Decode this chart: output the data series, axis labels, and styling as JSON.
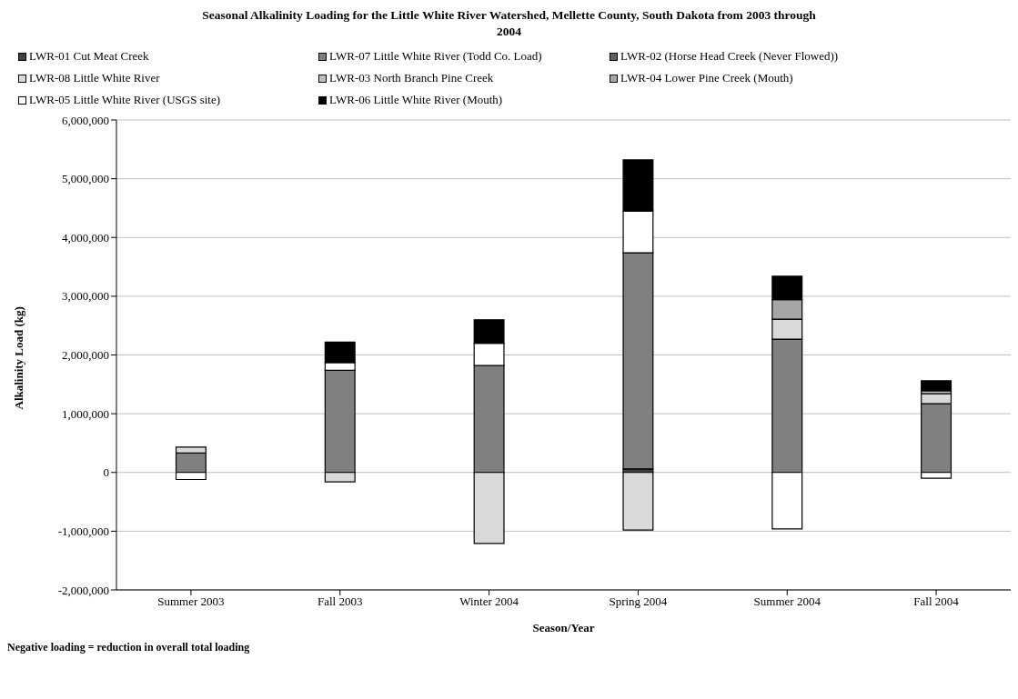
{
  "chart_data": {
    "type": "bar",
    "title": "Seasonal Alkalinity Loading for the Little White River Watershed, Mellette County, South Dakota from 2003 through 2004",
    "xlabel": "Season/Year",
    "ylabel": "Alkalinity Load (kg)",
    "annotations": [
      "Negative loading = reduction in overall total loading"
    ],
    "categories": [
      "Summer 2003",
      "Fall 2003",
      "Winter 2004",
      "Spring 2004",
      "Summer 2004",
      "Fall 2004"
    ],
    "stacked": true,
    "series": [
      {
        "name": "LWR-01 Cut Meat Creek",
        "color": "#404040",
        "values": [
          0,
          0,
          0,
          60000,
          0,
          0
        ]
      },
      {
        "name": "LWR-07 Little White River (Todd Co. Load)",
        "color": "#808080",
        "values": [
          330000,
          1740000,
          1820000,
          3680000,
          2270000,
          1170000
        ]
      },
      {
        "name": "LWR-02 (Horse Head Creek (Never Flowed))",
        "color": "#606060",
        "values": [
          0,
          0,
          0,
          0,
          0,
          0
        ]
      },
      {
        "name": "LWR-08 Little White River",
        "color": "#d9d9d9",
        "values": [
          100000,
          -160000,
          -1210000,
          -980000,
          340000,
          170000
        ]
      },
      {
        "name": "LWR-03 North Branch Pine Creek",
        "color": "#bfbfbf",
        "values": [
          0,
          0,
          0,
          0,
          0,
          50000
        ]
      },
      {
        "name": "LWR-04 Lower Pine Creek (Mouth)",
        "color": "#a6a6a6",
        "values": [
          0,
          0,
          0,
          0,
          330000,
          0
        ]
      },
      {
        "name": "LWR-05 Little White River (USGS site)",
        "color": "#ffffff",
        "values": [
          -120000,
          130000,
          380000,
          710000,
          -960000,
          -100000
        ]
      },
      {
        "name": "LWR-06 Little White River (Mouth)",
        "color": "#000000",
        "values": [
          0,
          350000,
          400000,
          870000,
          400000,
          170000
        ]
      }
    ],
    "ylim": [
      -2000000,
      6000000
    ],
    "yticks": [
      {
        "value": -2000000,
        "label": "-2,000,000"
      },
      {
        "value": -1000000,
        "label": "-1,000,000"
      },
      0,
      {
        "value": 1000000,
        "label": "1,000,000"
      },
      {
        "value": 2000000,
        "label": "2,000,000"
      },
      {
        "value": 3000000,
        "label": "3,000,000"
      },
      {
        "value": 4000000,
        "label": "4,000,000"
      },
      {
        "value": 5000000,
        "label": "5,000,000"
      },
      {
        "value": 6000000,
        "label": "6,000,000"
      }
    ],
    "grid": "y",
    "legend": "top"
  }
}
